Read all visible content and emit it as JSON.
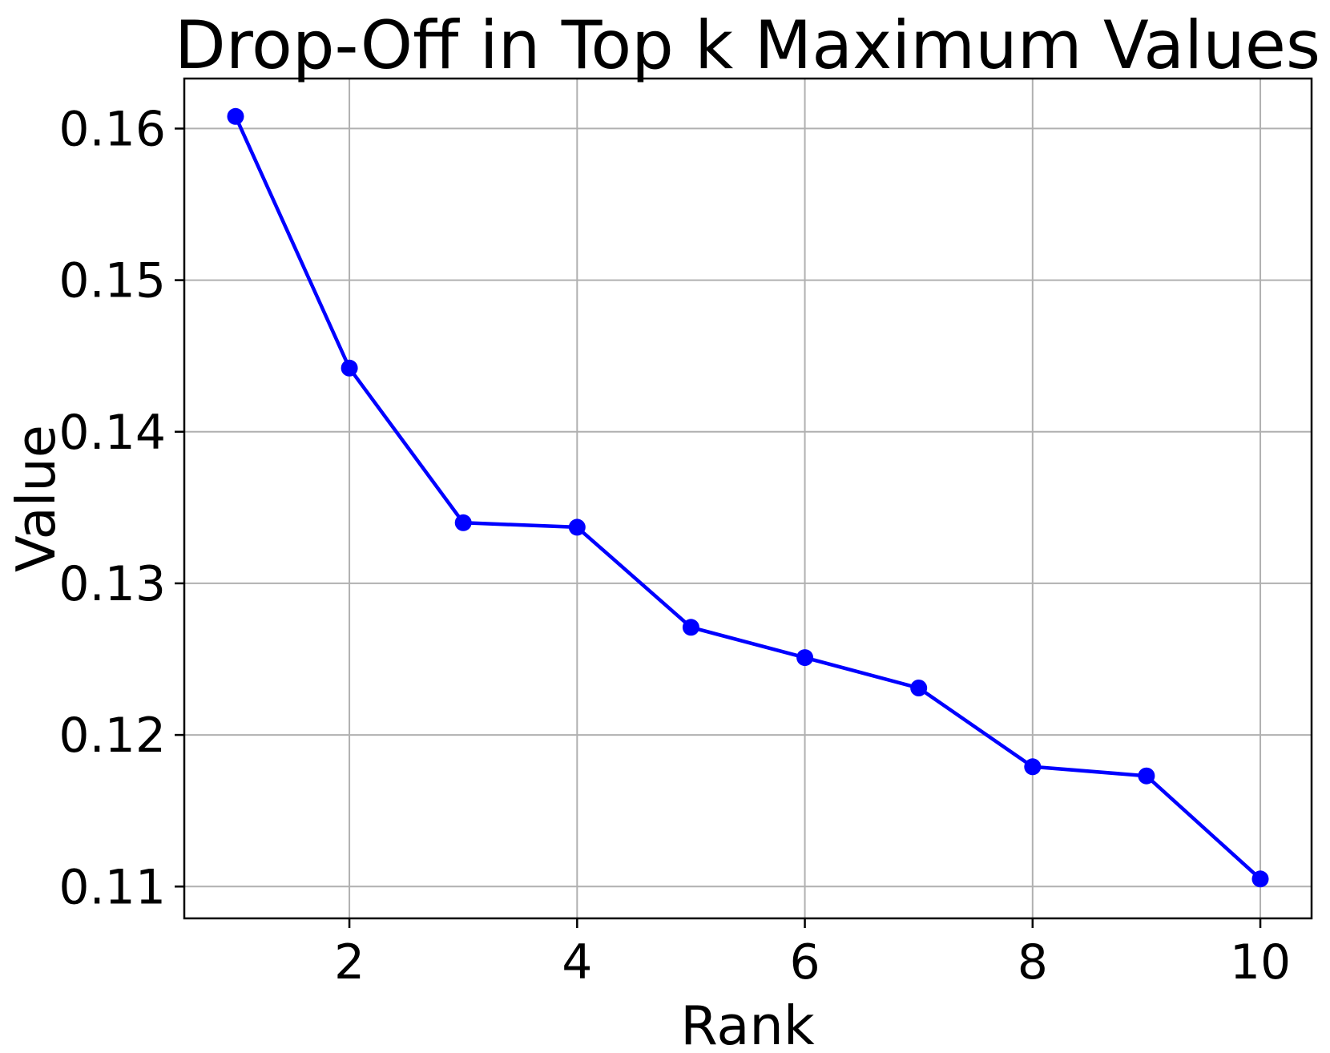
{
  "figure": {
    "background": "#ffffff"
  },
  "chart_data": {
    "type": "line",
    "title": "Drop-Off in Top k Maximum Values",
    "xlabel": "Rank",
    "ylabel": "Value",
    "x": [
      1,
      2,
      3,
      4,
      5,
      6,
      7,
      8,
      9,
      10
    ],
    "values": [
      0.1608,
      0.1442,
      0.134,
      0.1337,
      0.1271,
      0.1251,
      0.1231,
      0.1179,
      0.1173,
      0.1105
    ],
    "xlim": [
      0.55,
      10.45
    ],
    "ylim": [
      0.1079,
      0.1633
    ],
    "xticks": {
      "values": [
        2,
        4,
        6,
        8,
        10
      ],
      "labels": [
        "2",
        "4",
        "6",
        "8",
        "10"
      ]
    },
    "yticks": {
      "values": [
        0.11,
        0.12,
        0.13,
        0.14,
        0.15,
        0.16
      ],
      "labels": [
        "0.11",
        "0.12",
        "0.13",
        "0.14",
        "0.15",
        "0.16"
      ]
    },
    "grid": true,
    "legend": false,
    "line_color": "#0000ff",
    "marker": "circle",
    "grid_color": "#b0b0b0",
    "spine_color": "#000000",
    "text_color": "#000000"
  }
}
